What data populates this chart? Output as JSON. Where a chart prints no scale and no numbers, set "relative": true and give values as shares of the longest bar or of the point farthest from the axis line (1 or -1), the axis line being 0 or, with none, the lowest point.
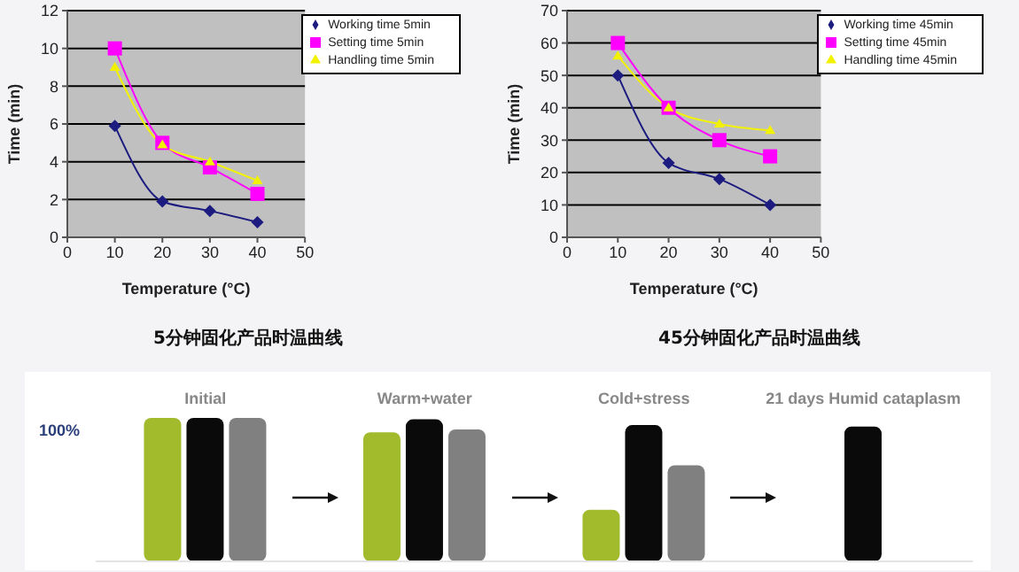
{
  "chart_data": [
    {
      "type": "line",
      "subtitle": "5分钟固化产品时温曲线",
      "xlabel": "Temperature (°C)",
      "ylabel": "Time (min)",
      "x": [
        10,
        20,
        30,
        40
      ],
      "xlim": [
        0,
        50
      ],
      "xticks": [
        0,
        10,
        20,
        30,
        40,
        50
      ],
      "ylim": [
        0,
        12
      ],
      "yticks": [
        0,
        2,
        4,
        6,
        8,
        10,
        12
      ],
      "grid": "y",
      "legend": "top right",
      "series": [
        {
          "name": "Working time 5min",
          "color": "#1c1c80",
          "marker": "diamond",
          "values": [
            5.9,
            1.9,
            1.4,
            0.8
          ]
        },
        {
          "name": "Setting time 5min",
          "color": "#ff00ff",
          "marker": "square",
          "values": [
            10,
            5,
            3.7,
            2.3
          ]
        },
        {
          "name": "Handling time 5min",
          "color": "#f2f200",
          "marker": "triangle",
          "values": [
            9,
            4.9,
            4,
            3
          ]
        }
      ]
    },
    {
      "type": "line",
      "subtitle": "45分钟固化产品时温曲线",
      "xlabel": "Temperature (°C)",
      "ylabel": "Time (min)",
      "x": [
        10,
        20,
        30,
        40
      ],
      "xlim": [
        0,
        50
      ],
      "xticks": [
        0,
        10,
        20,
        30,
        40,
        50
      ],
      "ylim": [
        0,
        70
      ],
      "yticks": [
        0,
        10,
        20,
        30,
        40,
        50,
        60,
        70
      ],
      "grid": "y",
      "legend": "top right",
      "series": [
        {
          "name": "Working time 45min",
          "color": "#1c1c80",
          "marker": "diamond",
          "values": [
            50,
            23,
            18,
            10
          ]
        },
        {
          "name": "Setting time 45min",
          "color": "#ff00ff",
          "marker": "square",
          "values": [
            60,
            40,
            30,
            25
          ]
        },
        {
          "name": "Handling time 45min",
          "color": "#f2f200",
          "marker": "triangle",
          "values": [
            56,
            40,
            35,
            33
          ]
        }
      ]
    },
    {
      "type": "bar",
      "relative": true,
      "categories": [
        "Initial",
        "Warm+water",
        "Cold+stress",
        "21 days Humid cataplasm"
      ],
      "annotations": [
        "100%"
      ],
      "series": [
        {
          "color": "#a1bb2c",
          "values": [
            1,
            0.9,
            0.36,
            null
          ]
        },
        {
          "color": "#0a0a0a",
          "values": [
            1,
            0.99,
            0.95,
            0.94
          ]
        },
        {
          "color": "#808080",
          "values": [
            1,
            0.92,
            0.67,
            null
          ]
        }
      ]
    }
  ]
}
